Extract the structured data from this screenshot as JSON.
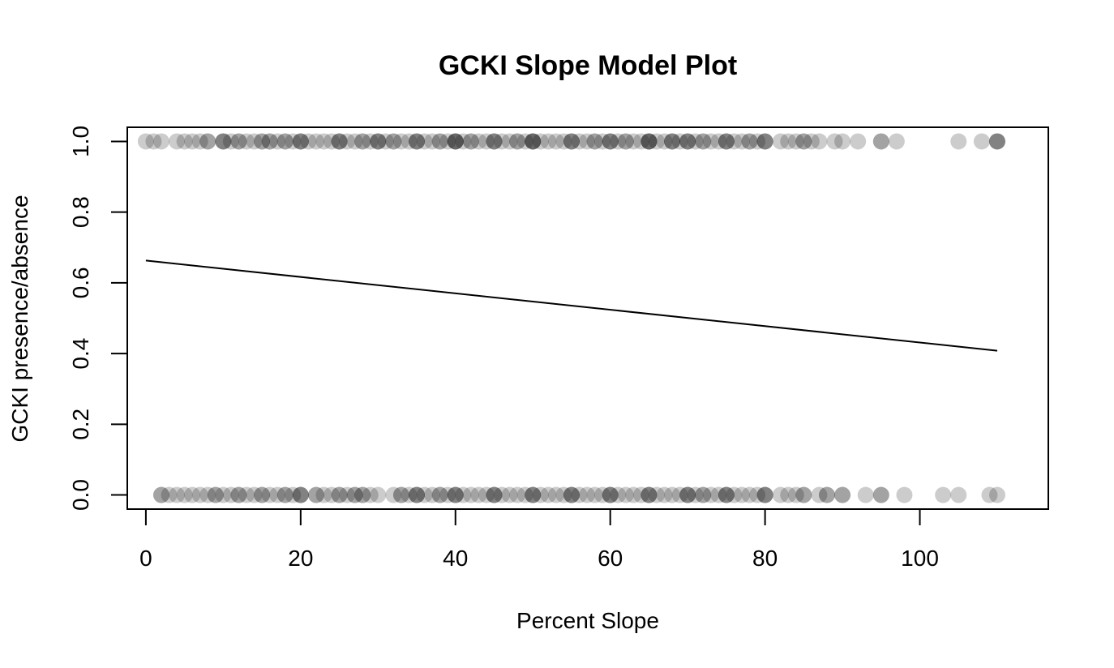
{
  "chart_data": {
    "type": "scatter",
    "title": "GCKI Slope Model Plot",
    "xlabel": "Percent Slope",
    "ylabel": "GCKI presence/absence",
    "xlim": [
      -2.4,
      116.6
    ],
    "ylim": [
      -0.04,
      1.04
    ],
    "x_ticks": [
      0,
      20,
      40,
      60,
      80,
      100
    ],
    "y_ticks": [
      0.0,
      0.2,
      0.4,
      0.6,
      0.8,
      1.0
    ],
    "x_tick_labels": [
      "0",
      "20",
      "40",
      "60",
      "80",
      "100"
    ],
    "y_tick_labels": [
      "0.0",
      "0.2",
      "0.4",
      "0.6",
      "0.8",
      "1.0"
    ],
    "grid": false,
    "point_color": "#000000",
    "point_opacity": 0.2,
    "line_color": "#000000",
    "fit_line": {
      "x": [
        0,
        110
      ],
      "y": [
        0.663,
        0.408
      ]
    },
    "series": [
      {
        "y": 1,
        "x": [
          0,
          1,
          2,
          4,
          5,
          6,
          7,
          8,
          8,
          10,
          10,
          10,
          11,
          12,
          12,
          13,
          14,
          15,
          15,
          16,
          16,
          17,
          18,
          18,
          19,
          20,
          20,
          20,
          21,
          22,
          23,
          24,
          25,
          25,
          25,
          26,
          27,
          28,
          28,
          29,
          30,
          30,
          30,
          31,
          32,
          32,
          33,
          34,
          35,
          35,
          35,
          36,
          37,
          38,
          38,
          39,
          40,
          40,
          40,
          40,
          41,
          42,
          42,
          43,
          44,
          45,
          45,
          45,
          46,
          47,
          48,
          48,
          49,
          50,
          50,
          50,
          50,
          51,
          52,
          53,
          54,
          55,
          55,
          55,
          56,
          57,
          58,
          58,
          59,
          60,
          60,
          60,
          61,
          62,
          62,
          63,
          64,
          65,
          65,
          65,
          65,
          66,
          67,
          68,
          68,
          68,
          69,
          70,
          70,
          70,
          71,
          72,
          72,
          73,
          74,
          75,
          75,
          75,
          76,
          77,
          78,
          78,
          79,
          80,
          80,
          80,
          82,
          83,
          84,
          85,
          85,
          86,
          87,
          89,
          90,
          92,
          95,
          95,
          97,
          105,
          108,
          110,
          110,
          110
        ]
      },
      {
        "y": 0,
        "x": [
          2,
          2,
          3,
          4,
          5,
          6,
          7,
          8,
          9,
          9,
          10,
          11,
          12,
          12,
          13,
          14,
          15,
          15,
          16,
          17,
          18,
          18,
          19,
          20,
          20,
          20,
          22,
          22,
          23,
          24,
          25,
          25,
          26,
          27,
          27,
          28,
          28,
          29,
          30,
          32,
          33,
          33,
          34,
          35,
          35,
          35,
          36,
          37,
          38,
          38,
          39,
          40,
          40,
          40,
          41,
          42,
          43,
          44,
          45,
          45,
          45,
          46,
          47,
          48,
          49,
          50,
          50,
          50,
          51,
          52,
          53,
          54,
          55,
          55,
          55,
          56,
          57,
          58,
          59,
          60,
          60,
          60,
          61,
          62,
          63,
          64,
          65,
          65,
          65,
          66,
          67,
          68,
          69,
          70,
          70,
          70,
          71,
          72,
          72,
          73,
          74,
          75,
          75,
          75,
          76,
          77,
          78,
          79,
          80,
          80,
          80,
          82,
          83,
          84,
          85,
          85,
          87,
          88,
          88,
          90,
          90,
          93,
          95,
          95,
          98,
          103,
          105,
          109,
          110
        ]
      }
    ]
  }
}
